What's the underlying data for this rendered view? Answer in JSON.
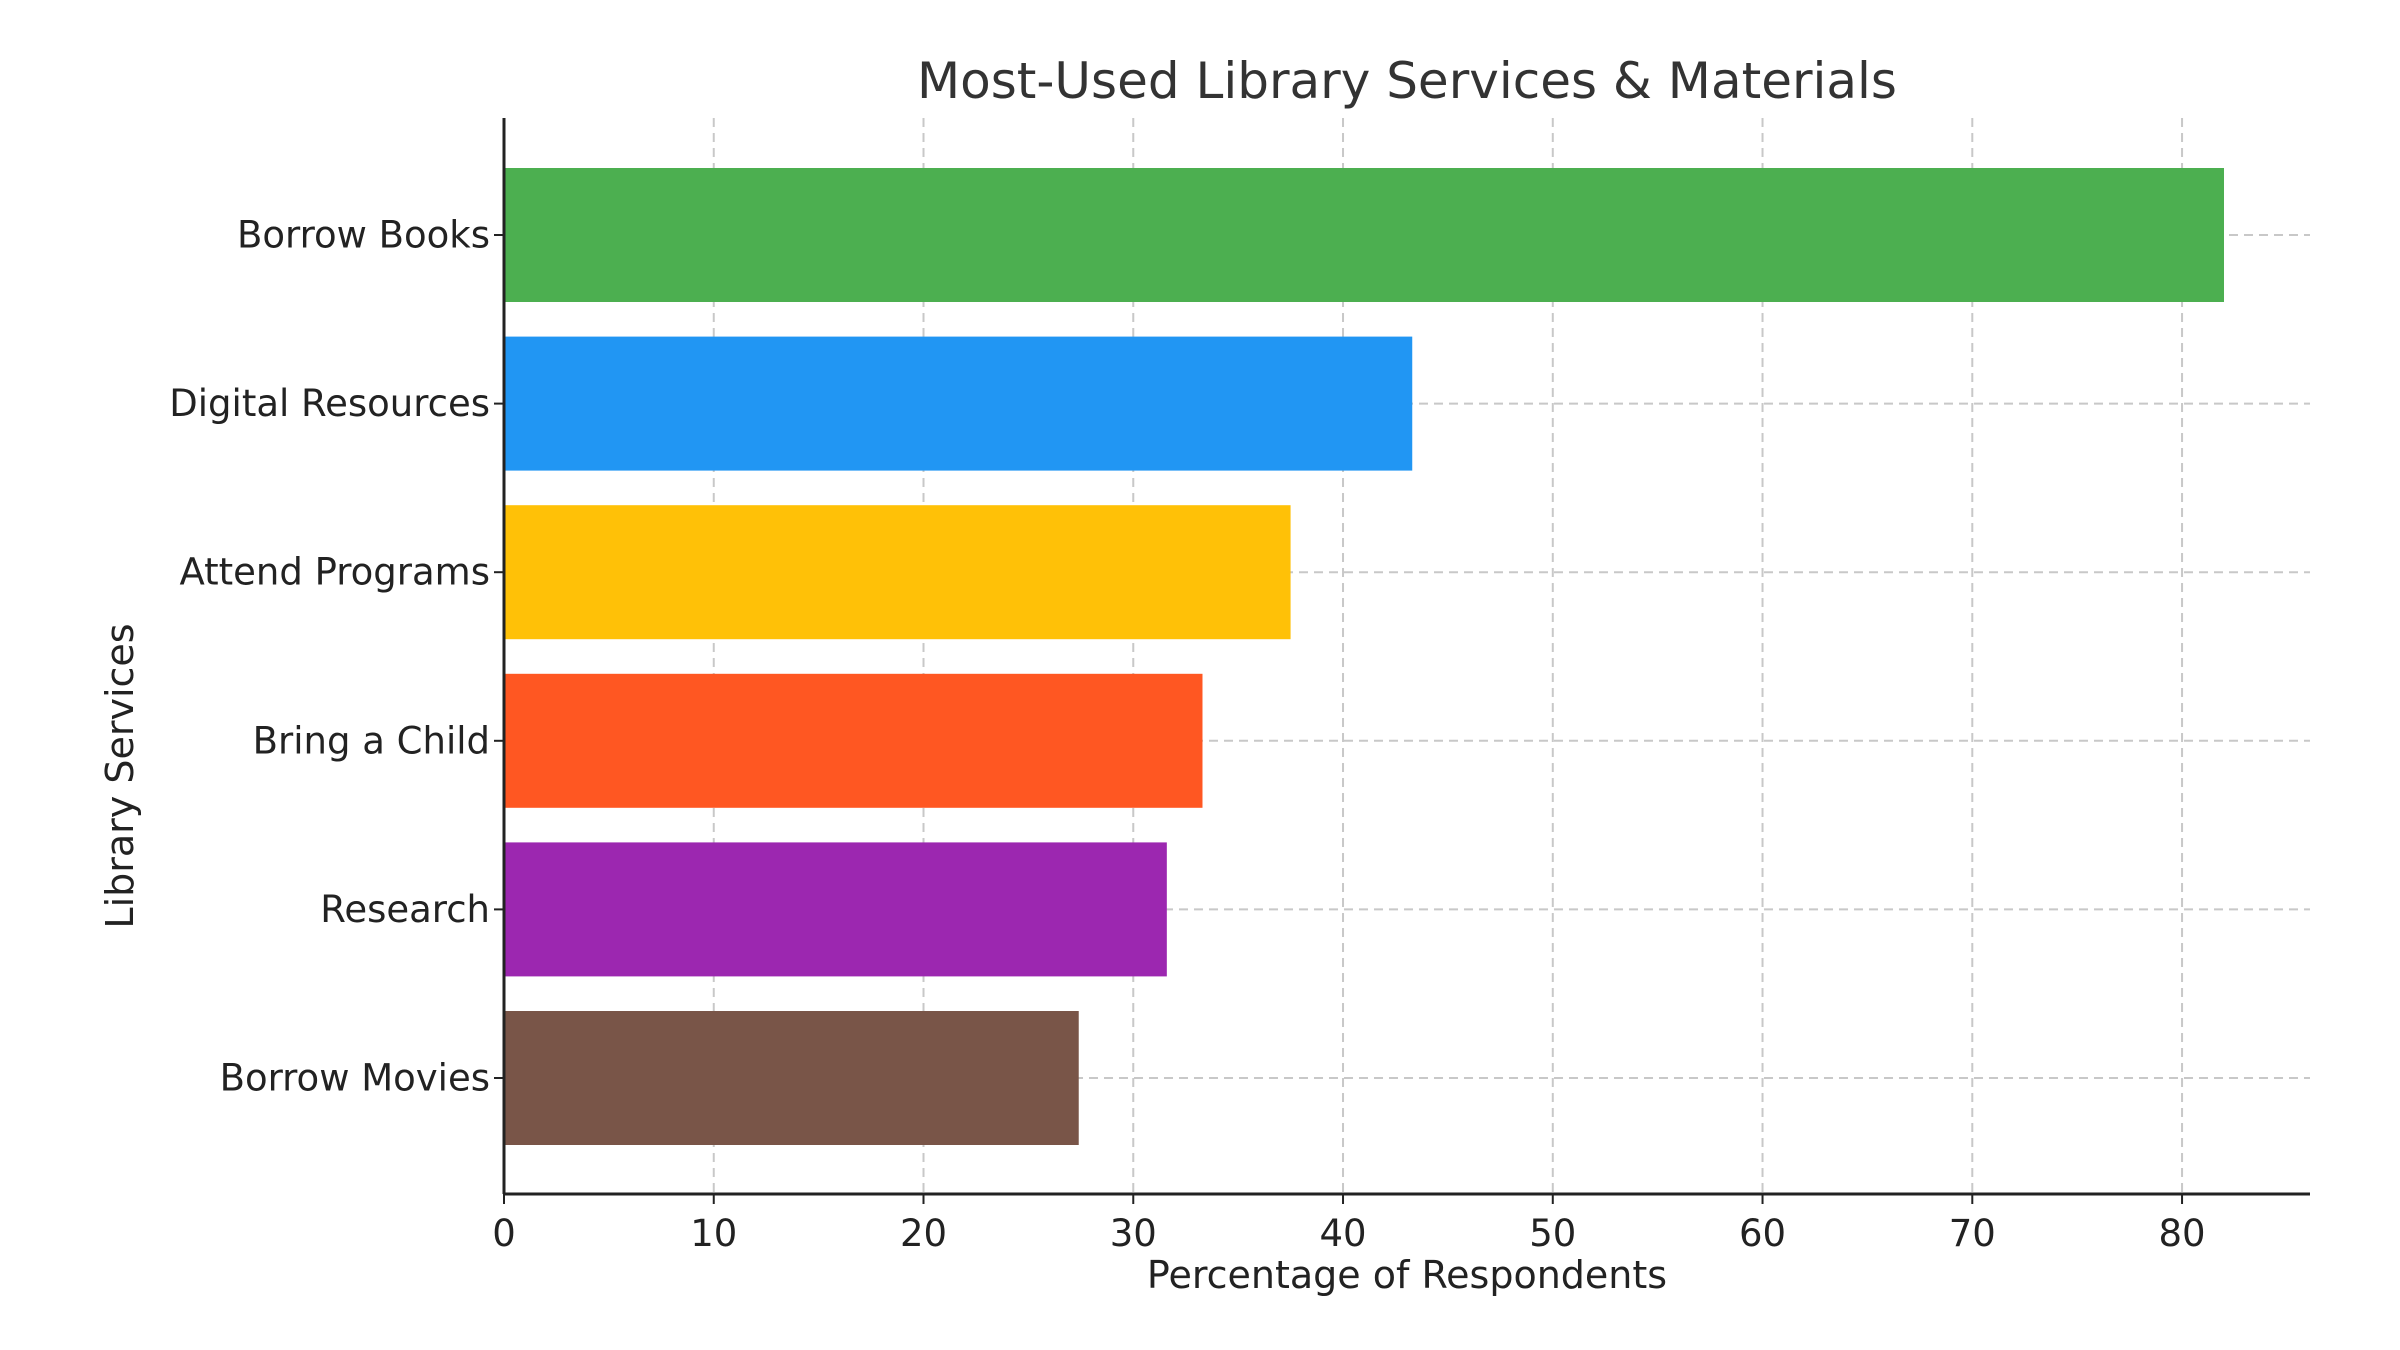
{
  "chart_data": {
    "type": "bar",
    "orientation": "horizontal",
    "title": "Most-Used Library Services & Materials",
    "xlabel": "Percentage of Respondents",
    "ylabel": "Library Services",
    "categories": [
      "Borrow Books",
      "Digital Resources",
      "Attend Programs",
      "Bring a Child",
      "Research",
      "Borrow Movies"
    ],
    "values": [
      82,
      43.3,
      37.5,
      33.3,
      31.6,
      27.4
    ],
    "colors": [
      "#4caf50",
      "#2196f3",
      "#ffc107",
      "#ff5722",
      "#9c27b0",
      "#795548"
    ],
    "xlim": [
      0,
      86.1
    ],
    "xticks": [
      0,
      10,
      20,
      30,
      40,
      50,
      60,
      70,
      80
    ],
    "xtick_labels": [
      "0",
      "10",
      "20",
      "30",
      "40",
      "50",
      "60",
      "70",
      "80"
    ],
    "grid": true,
    "grid_style": "dashed",
    "legend": "none"
  }
}
